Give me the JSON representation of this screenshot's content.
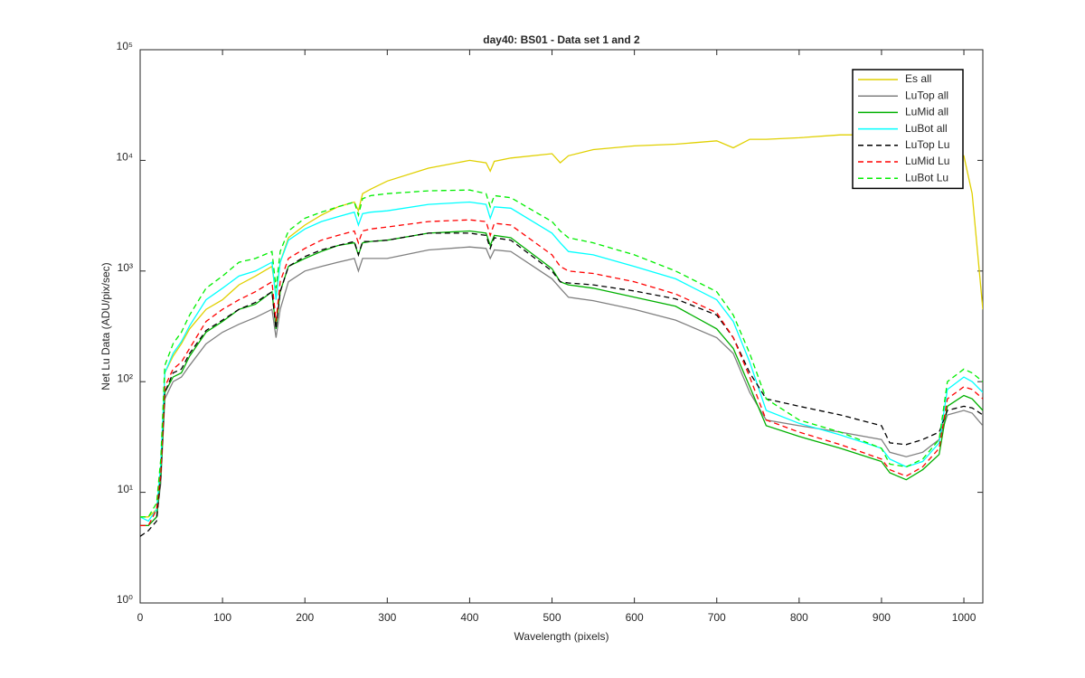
{
  "chart_data": {
    "type": "line",
    "title": "day40: BS01 - Data set 1 and 2",
    "x_label": "Wavelength (pixels)",
    "y_label": "Net Lu Data (ADU/pix/sec)",
    "x": [
      0,
      10,
      20,
      25,
      30,
      40,
      50,
      60,
      80,
      100,
      120,
      140,
      160,
      165,
      170,
      180,
      200,
      220,
      240,
      260,
      265,
      270,
      280,
      300,
      350,
      400,
      420,
      425,
      430,
      450,
      500,
      510,
      520,
      550,
      600,
      650,
      700,
      720,
      740,
      760,
      800,
      850,
      900,
      910,
      930,
      950,
      970,
      980,
      1000,
      1010,
      1023
    ],
    "series": [
      {
        "name": "Es  all",
        "color": "#e0d000",
        "dashed": false,
        "values": [
          6,
          6,
          7,
          15,
          120,
          170,
          220,
          300,
          450,
          550,
          750,
          900,
          1100,
          600,
          1200,
          2000,
          2600,
          3200,
          3800,
          4200,
          3500,
          5000,
          5500,
          6500,
          8500,
          10000,
          9500,
          8000,
          9800,
          10500,
          11500,
          9500,
          11000,
          12500,
          13500,
          14000,
          15000,
          13000,
          15500,
          15500,
          16000,
          17000,
          17000,
          17000,
          16500,
          15000,
          13500,
          12500,
          11000,
          5000,
          450
        ]
      },
      {
        "name": "LuTop  all",
        "color": "#808080",
        "dashed": false,
        "values": [
          5,
          5,
          6,
          12,
          70,
          100,
          110,
          140,
          220,
          280,
          330,
          380,
          450,
          250,
          450,
          800,
          1000,
          1100,
          1200,
          1300,
          1000,
          1300,
          1300,
          1300,
          1550,
          1650,
          1600,
          1300,
          1550,
          1500,
          850,
          700,
          580,
          540,
          450,
          360,
          250,
          180,
          80,
          45,
          40,
          35,
          30,
          23,
          21,
          23,
          30,
          50,
          55,
          52,
          40
        ]
      },
      {
        "name": "LuMid  all",
        "color": "#00b000",
        "dashed": false,
        "values": [
          5,
          5,
          6,
          14,
          80,
          110,
          120,
          170,
          280,
          350,
          450,
          500,
          650,
          300,
          650,
          1100,
          1300,
          1500,
          1700,
          1800,
          1400,
          1800,
          1850,
          1900,
          2200,
          2300,
          2200,
          1700,
          2100,
          2000,
          1050,
          800,
          750,
          700,
          580,
          480,
          300,
          200,
          90,
          40,
          32,
          25,
          19,
          15,
          13,
          16,
          22,
          60,
          75,
          70,
          55
        ]
      },
      {
        "name": "LuBot  all",
        "color": "#00ffff",
        "dashed": false,
        "values": [
          6,
          5.5,
          7,
          18,
          120,
          180,
          230,
          320,
          550,
          700,
          900,
          1000,
          1200,
          550,
          1200,
          1900,
          2400,
          2800,
          3100,
          3400,
          2600,
          3300,
          3400,
          3500,
          4000,
          4200,
          4000,
          3000,
          3800,
          3700,
          2200,
          1800,
          1500,
          1400,
          1100,
          850,
          550,
          350,
          150,
          55,
          42,
          33,
          25,
          20,
          17,
          19,
          28,
          85,
          110,
          100,
          80
        ]
      },
      {
        "name": "LuTop  Lu",
        "color": "#000000",
        "dashed": true,
        "values": [
          4,
          4.5,
          5.5,
          14,
          80,
          120,
          130,
          180,
          290,
          360,
          450,
          520,
          650,
          300,
          650,
          1100,
          1350,
          1550,
          1700,
          1850,
          1400,
          1850,
          1850,
          1900,
          2200,
          2200,
          2100,
          1600,
          2000,
          1900,
          1000,
          800,
          780,
          750,
          660,
          560,
          400,
          250,
          120,
          70,
          60,
          50,
          40,
          28,
          27,
          30,
          35,
          55,
          60,
          58,
          50
        ]
      },
      {
        "name": "LuMid  Lu",
        "color": "#ff0000",
        "dashed": true,
        "values": [
          5,
          5,
          7,
          15,
          90,
          130,
          150,
          200,
          350,
          450,
          550,
          650,
          800,
          350,
          800,
          1300,
          1600,
          1900,
          2100,
          2300,
          1800,
          2300,
          2400,
          2500,
          2800,
          2900,
          2800,
          2100,
          2700,
          2600,
          1400,
          1100,
          1000,
          950,
          800,
          620,
          420,
          250,
          110,
          45,
          35,
          27,
          20,
          16,
          14,
          17,
          25,
          70,
          90,
          85,
          70
        ]
      },
      {
        "name": "LuBot  Lu",
        "color": "#00ee00",
        "dashed": true,
        "values": [
          6,
          6,
          8,
          20,
          140,
          220,
          280,
          400,
          700,
          900,
          1200,
          1300,
          1500,
          700,
          1500,
          2300,
          3000,
          3400,
          3800,
          4200,
          3200,
          4500,
          4800,
          5000,
          5300,
          5400,
          5000,
          3800,
          4800,
          4600,
          2800,
          2300,
          2000,
          1800,
          1400,
          1000,
          650,
          400,
          180,
          70,
          45,
          35,
          25,
          18,
          17,
          20,
          30,
          100,
          130,
          120,
          100
        ]
      }
    ],
    "xlim": [
      0,
      1023
    ],
    "xticks": [
      0,
      100,
      200,
      300,
      400,
      500,
      600,
      700,
      800,
      900,
      1000
    ],
    "ylim": [
      1,
      100000
    ],
    "y_log": true,
    "yticks": [
      {
        "value": 1,
        "label": "10⁰"
      },
      {
        "value": 10,
        "label": "10¹"
      },
      {
        "value": 100,
        "label": "10²"
      },
      {
        "value": 1000,
        "label": "10³"
      },
      {
        "value": 10000,
        "label": "10⁴"
      },
      {
        "value": 100000,
        "label": "10⁵"
      }
    ],
    "legend": "top-right"
  }
}
